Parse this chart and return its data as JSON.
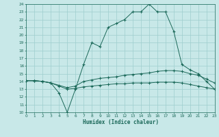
{
  "background_color": "#c8e8e8",
  "line_color": "#1a6858",
  "grid_color": "#9ecece",
  "xlabel": "Humidex (Indice chaleur)",
  "ylim": [
    10,
    24
  ],
  "xlim": [
    0,
    23
  ],
  "yticks": [
    10,
    11,
    12,
    13,
    14,
    15,
    16,
    17,
    18,
    19,
    20,
    21,
    22,
    23,
    24
  ],
  "xticks": [
    0,
    1,
    2,
    3,
    4,
    5,
    6,
    7,
    8,
    9,
    10,
    11,
    12,
    13,
    14,
    15,
    16,
    17,
    18,
    19,
    20,
    21,
    22,
    23
  ],
  "curve1_x": [
    0,
    1,
    2,
    3,
    4,
    5,
    6,
    7,
    8,
    9,
    10,
    11,
    12,
    13,
    14,
    15,
    16,
    17,
    18,
    19,
    20,
    21,
    22,
    23
  ],
  "curve1_y": [
    14.1,
    14.1,
    14.0,
    13.8,
    12.5,
    10.0,
    13.0,
    16.2,
    19.0,
    18.5,
    21.0,
    21.5,
    22.0,
    23.0,
    23.0,
    24.0,
    23.0,
    23.0,
    20.5,
    16.2,
    15.5,
    15.0,
    14.0,
    13.0
  ],
  "curve2_x": [
    0,
    1,
    2,
    3,
    4,
    5,
    6,
    7,
    8,
    9,
    10,
    11,
    12,
    13,
    14,
    15,
    16,
    17,
    18,
    19,
    20,
    21,
    22,
    23
  ],
  "curve2_y": [
    14.1,
    14.1,
    14.0,
    13.8,
    13.5,
    13.2,
    13.4,
    14.0,
    14.2,
    14.4,
    14.5,
    14.6,
    14.8,
    14.9,
    15.0,
    15.1,
    15.3,
    15.4,
    15.4,
    15.3,
    15.0,
    14.8,
    14.3,
    13.8
  ],
  "curve3_x": [
    0,
    1,
    2,
    3,
    4,
    5,
    6,
    7,
    8,
    9,
    10,
    11,
    12,
    13,
    14,
    15,
    16,
    17,
    18,
    19,
    20,
    21,
    22,
    23
  ],
  "curve3_y": [
    14.1,
    14.1,
    14.0,
    13.8,
    13.4,
    13.0,
    13.1,
    13.3,
    13.4,
    13.5,
    13.6,
    13.7,
    13.7,
    13.8,
    13.8,
    13.8,
    13.9,
    13.9,
    13.9,
    13.8,
    13.6,
    13.4,
    13.2,
    13.0
  ]
}
